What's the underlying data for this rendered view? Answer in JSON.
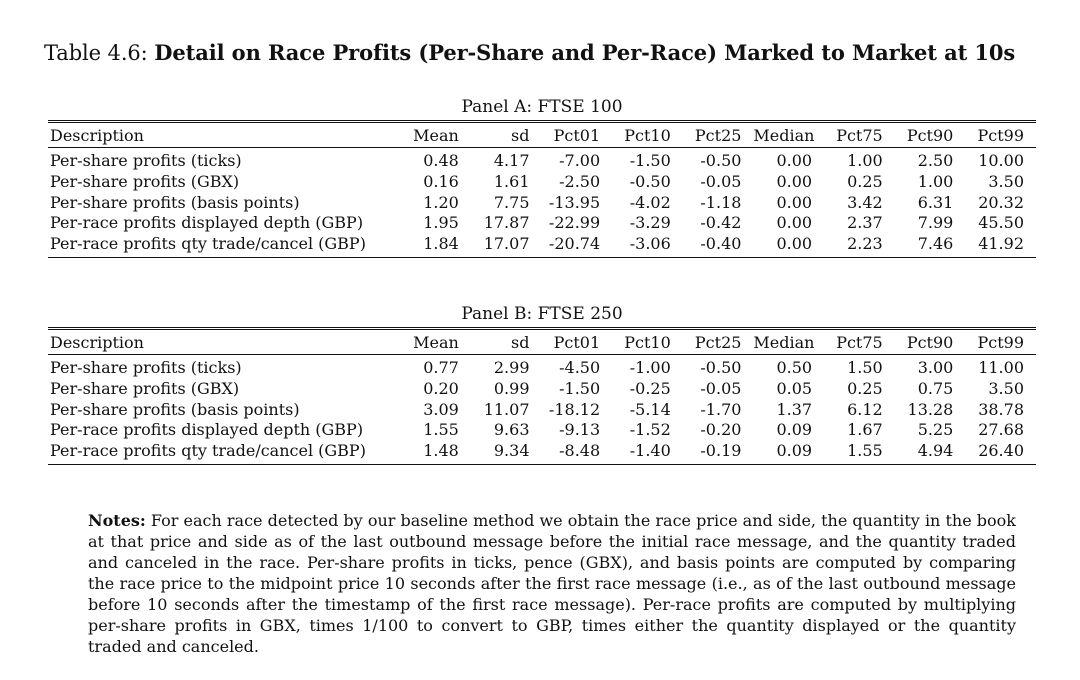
{
  "caption": {
    "label": "Table 4.6:",
    "title": "Detail on Race Profits (Per-Share and Per-Race) Marked to Market at 10s"
  },
  "columns": [
    "Description",
    "Mean",
    "sd",
    "Pct01",
    "Pct10",
    "Pct25",
    "Median",
    "Pct75",
    "Pct90",
    "Pct99"
  ],
  "panels": [
    {
      "title": "Panel A: FTSE 100",
      "rows": [
        [
          "Per-share profits (ticks)",
          "0.48",
          "4.17",
          "-7.00",
          "-1.50",
          "-0.50",
          "0.00",
          "1.00",
          "2.50",
          "10.00"
        ],
        [
          "Per-share profits (GBX)",
          "0.16",
          "1.61",
          "-2.50",
          "-0.50",
          "-0.05",
          "0.00",
          "0.25",
          "1.00",
          "3.50"
        ],
        [
          "Per-share profits (basis points)",
          "1.20",
          "7.75",
          "-13.95",
          "-4.02",
          "-1.18",
          "0.00",
          "3.42",
          "6.31",
          "20.32"
        ],
        [
          "Per-race profits displayed depth (GBP)",
          "1.95",
          "17.87",
          "-22.99",
          "-3.29",
          "-0.42",
          "0.00",
          "2.37",
          "7.99",
          "45.50"
        ],
        [
          "Per-race profits qty trade/cancel (GBP)",
          "1.84",
          "17.07",
          "-20.74",
          "-3.06",
          "-0.40",
          "0.00",
          "2.23",
          "7.46",
          "41.92"
        ]
      ]
    },
    {
      "title": "Panel B: FTSE 250",
      "rows": [
        [
          "Per-share profits (ticks)",
          "0.77",
          "2.99",
          "-4.50",
          "-1.00",
          "-0.50",
          "0.50",
          "1.50",
          "3.00",
          "11.00"
        ],
        [
          "Per-share profits (GBX)",
          "0.20",
          "0.99",
          "-1.50",
          "-0.25",
          "-0.05",
          "0.05",
          "0.25",
          "0.75",
          "3.50"
        ],
        [
          "Per-share profits (basis points)",
          "3.09",
          "11.07",
          "-18.12",
          "-5.14",
          "-1.70",
          "1.37",
          "6.12",
          "13.28",
          "38.78"
        ],
        [
          "Per-race profits displayed depth (GBP)",
          "1.55",
          "9.63",
          "-9.13",
          "-1.52",
          "-0.20",
          "0.09",
          "1.67",
          "5.25",
          "27.68"
        ],
        [
          "Per-race profits qty trade/cancel (GBP)",
          "1.48",
          "9.34",
          "-8.48",
          "-1.40",
          "-0.19",
          "0.09",
          "1.55",
          "4.94",
          "26.40"
        ]
      ]
    }
  ],
  "notes": {
    "label": "Notes:",
    "text": "For each race detected by our baseline method we obtain the race price and side, the quantity in the book at that price and side as of the last outbound message before the initial race message, and the quantity traded and canceled in the race. Per-share profits in ticks, pence (GBX), and basis points are computed by comparing the race price to the midpoint price 10 seconds after the first race message (i.e., as of the last outbound message before 10 seconds after the timestamp of the first race message). Per-race profits are computed by multiplying per-share profits in GBX, times 1/100 to convert to GBP, times either the quantity displayed or the quantity traded and canceled."
  }
}
